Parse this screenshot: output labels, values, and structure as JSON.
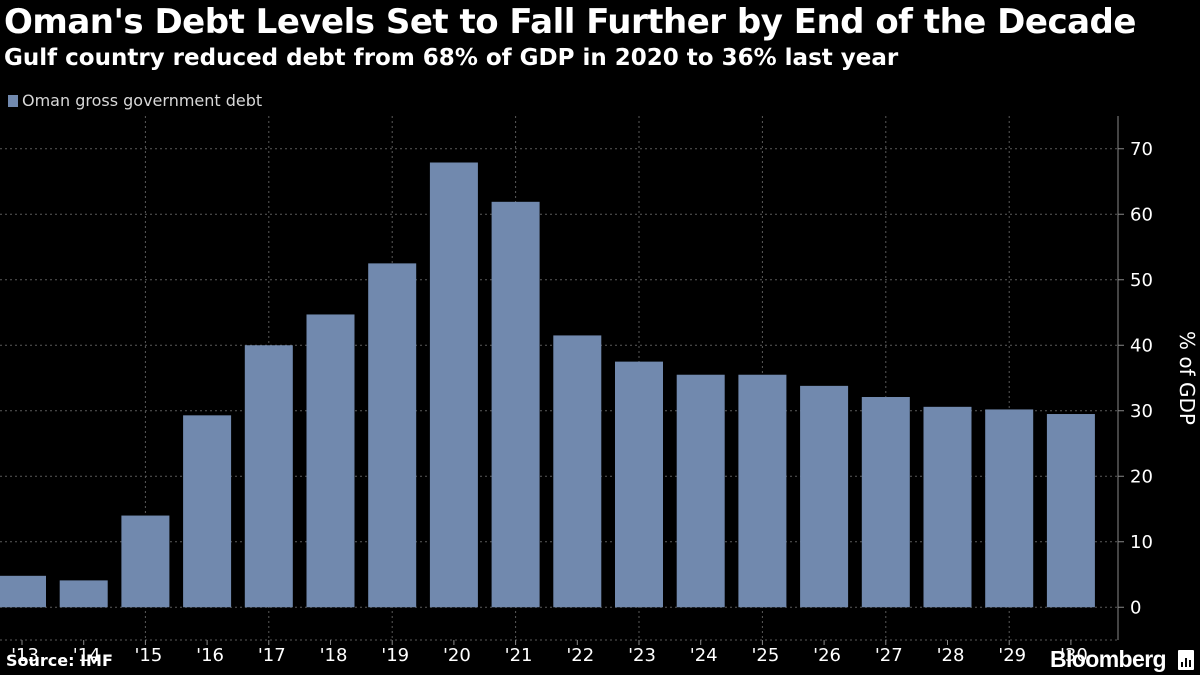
{
  "title": "Oman's Debt Levels Set to Fall Further by End of the Decade",
  "subtitle": "Gulf country reduced debt from 68% of GDP in 2020 to 36% last year",
  "source": "Source: IMF",
  "brand": "Bloomberg",
  "colors": {
    "background": "#000000",
    "bar": "#7189ae",
    "grid": "#5a5a5a",
    "text": "#ffffff"
  },
  "chart_data": {
    "type": "bar",
    "title": "Oman's Debt Levels Set to Fall Further by End of the Decade",
    "subtitle": "Gulf country reduced debt from 68% of GDP in 2020 to 36% last year",
    "xlabel": "",
    "ylabel": "% of GDP",
    "ylim": [
      -5,
      75
    ],
    "yticks": [
      0,
      10,
      20,
      30,
      40,
      50,
      60,
      70
    ],
    "grid": true,
    "legend_position": "top-left",
    "categories": [
      "'13",
      "'14",
      "'15",
      "'16",
      "'17",
      "'18",
      "'19",
      "'20",
      "'21",
      "'22",
      "'23",
      "'24",
      "'25",
      "'26",
      "'27",
      "'28",
      "'29",
      "'30"
    ],
    "series": [
      {
        "name": "Oman gross government debt",
        "color": "#7189ae",
        "values": [
          4.8,
          4.1,
          14.0,
          29.3,
          40.0,
          44.7,
          52.5,
          67.9,
          61.9,
          41.5,
          37.5,
          35.5,
          35.5,
          33.8,
          32.1,
          30.6,
          30.2,
          29.5
        ]
      }
    ]
  }
}
